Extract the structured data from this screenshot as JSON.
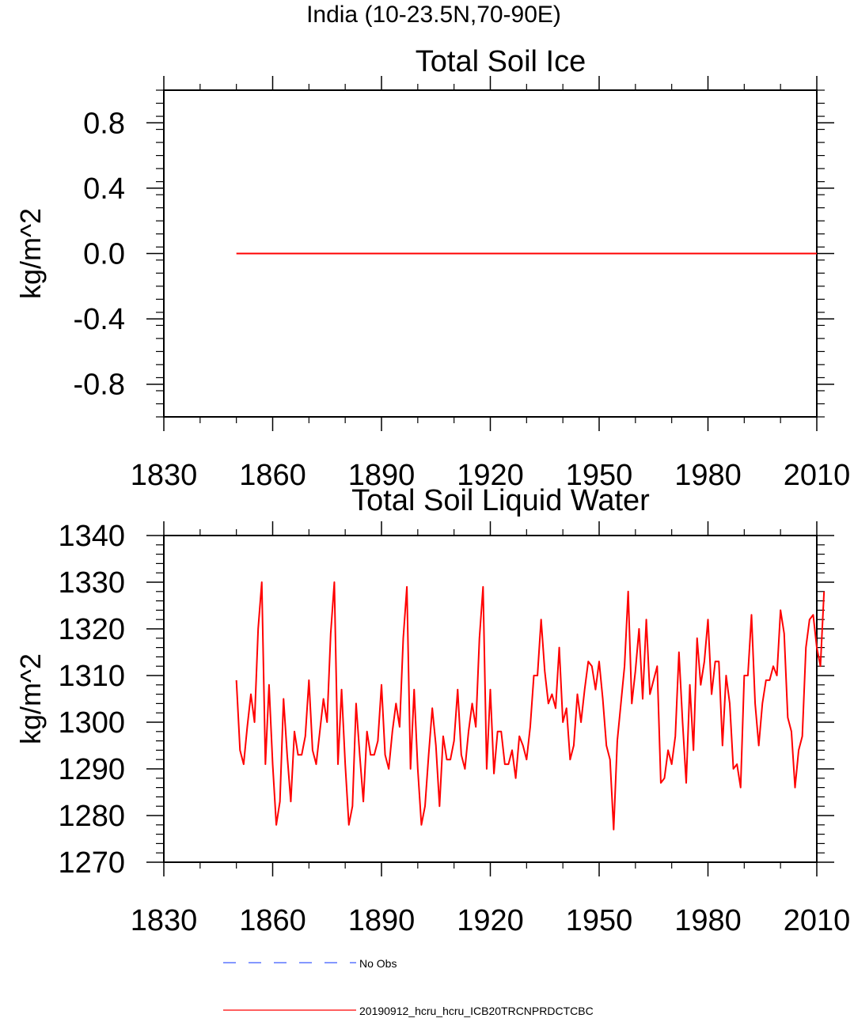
{
  "page_title": "India (10-23.5N,70-90E)",
  "legend": [
    {
      "label": "No Obs",
      "color": "#3b5bff",
      "style": "dashed"
    },
    {
      "label": "20190912_hcru_hcru_ICB20TRCNPRDCTCBC",
      "color": "#ff0000",
      "style": "solid"
    }
  ],
  "chart_data": [
    {
      "type": "line",
      "title": "Total Soil Ice",
      "xlabel": "",
      "ylabel": "kg/m^2",
      "xlim": [
        1830,
        2010
      ],
      "ylim": [
        -1.0,
        1.0
      ],
      "xticks": [
        1830,
        1860,
        1890,
        1920,
        1950,
        1980,
        2010
      ],
      "xtick_labels": [
        "1830",
        "1860",
        "1890",
        "1920",
        "1950",
        "1980",
        "2010"
      ],
      "yticks": [
        -0.8,
        -0.4,
        0.0,
        0.4,
        0.8
      ],
      "ytick_labels": [
        "-0.8",
        "-0.4",
        "0.0",
        "0.4",
        "0.8"
      ],
      "series": [
        {
          "name": "20190912_hcru_hcru_ICB20TRCNPRDCTCBC",
          "color": "#ff0000",
          "x": [
            1850,
            2010
          ],
          "values": [
            0.0,
            0.0
          ]
        }
      ]
    },
    {
      "type": "line",
      "title": "Total Soil Liquid Water",
      "xlabel": "",
      "ylabel": "kg/m^2",
      "xlim": [
        1830,
        2010
      ],
      "ylim": [
        1270,
        1340
      ],
      "xticks": [
        1830,
        1860,
        1890,
        1920,
        1950,
        1980,
        2010
      ],
      "xtick_labels": [
        "1830",
        "1860",
        "1890",
        "1920",
        "1950",
        "1980",
        "2010"
      ],
      "yticks": [
        1270,
        1280,
        1290,
        1300,
        1310,
        1320,
        1330,
        1340
      ],
      "ytick_labels": [
        "1270",
        "1280",
        "1290",
        "1300",
        "1310",
        "1320",
        "1330",
        "1340"
      ],
      "series": [
        {
          "name": "20190912_hcru_hcru_ICB20TRCNPRDCTCBC",
          "color": "#ff0000",
          "x_start": 1850,
          "x_step": 1,
          "values": [
            1309,
            1294,
            1291,
            1299,
            1306,
            1300,
            1320,
            1330,
            1291,
            1308,
            1291,
            1278,
            1283,
            1305,
            1293,
            1283,
            1298,
            1293,
            1293,
            1297,
            1309,
            1294,
            1291,
            1298,
            1305,
            1300,
            1319,
            1330,
            1291,
            1307,
            1291,
            1278,
            1282,
            1304,
            1293,
            1283,
            1298,
            1293,
            1293,
            1296,
            1308,
            1293,
            1290,
            1298,
            1304,
            1299,
            1318,
            1329,
            1290,
            1307,
            1290,
            1278,
            1282,
            1293,
            1303,
            1295,
            1282,
            1297,
            1292,
            1292,
            1296,
            1307,
            1293,
            1290,
            1298,
            1304,
            1299,
            1318,
            1329,
            1290,
            1307,
            1289,
            1298,
            1298,
            1291,
            1291,
            1294,
            1288,
            1297,
            1295,
            1292,
            1299,
            1310,
            1310,
            1322,
            1311,
            1304,
            1306,
            1303,
            1316,
            1300,
            1303,
            1292,
            1295,
            1306,
            1300,
            1307,
            1313,
            1312,
            1307,
            1313,
            1305,
            1295,
            1292,
            1277,
            1296,
            1304,
            1312,
            1328,
            1304,
            1311,
            1320,
            1305,
            1322,
            1306,
            1309,
            1312,
            1287,
            1288,
            1294,
            1291,
            1297,
            1315,
            1300,
            1287,
            1308,
            1294,
            1318,
            1308,
            1313,
            1322,
            1306,
            1313,
            1313,
            1295,
            1310,
            1304,
            1290,
            1291,
            1286,
            1310,
            1310,
            1323,
            1304,
            1295,
            1304,
            1309,
            1309,
            1312,
            1310,
            1324,
            1319,
            1301,
            1298,
            1286,
            1294,
            1297,
            1316,
            1322,
            1323,
            1316,
            1312,
            1328
          ]
        }
      ]
    }
  ]
}
